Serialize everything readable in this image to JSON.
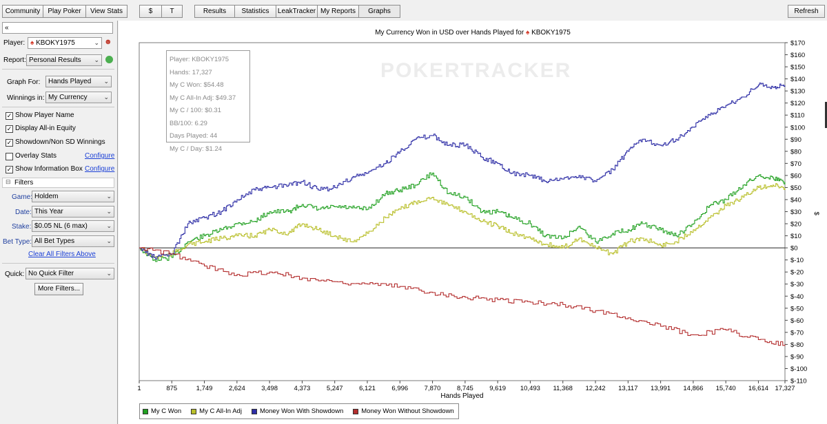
{
  "toolbar": {
    "group1": [
      "Community",
      "Play Poker",
      "View Stats"
    ],
    "group2": [
      "$",
      "T"
    ],
    "group3": [
      "Results",
      "Statistics",
      "LeakTracker",
      "My Reports",
      "Graphs"
    ],
    "refresh": "Refresh"
  },
  "left": {
    "search_glyph": "«",
    "player_label": "Player:",
    "player_value": "KBOKY1975",
    "report_label": "Report:",
    "report_value": "Personal Results",
    "graph_for_label": "Graph For:",
    "graph_for_value": "Hands Played",
    "winnings_label": "Winnings in:",
    "winnings_value": "My Currency",
    "checks": [
      {
        "label": "Show Player Name",
        "checked": true
      },
      {
        "label": "Display All-in Equity",
        "checked": true
      },
      {
        "label": "Showdown/Non SD Winnings",
        "checked": true
      },
      {
        "label": "Overlay Stats",
        "checked": false
      },
      {
        "label": "Show Information Box",
        "checked": true
      }
    ],
    "configure": "Configure",
    "filters_header": "Filters",
    "game_label": "Game:",
    "game_value": "Holdem",
    "date_label": "Date:",
    "date_value": "This Year",
    "stake_label": "Stake:",
    "stake_value": "$0.05 NL (6 max)",
    "bettype_label": "Bet Type:",
    "bettype_value": "All Bet Types",
    "clear_filters": "Clear All Filters Above",
    "quick_label": "Quick:",
    "quick_value": "No Quick Filter",
    "more_filters": "More Filters..."
  },
  "infobox": [
    "Player: KBOKY1975",
    "Hands: 17,327",
    "My C Won: $54.48",
    "My C All-In Adj: $49.37",
    "My C / 100: $0.31",
    "BB/100: 6.29",
    "Days Played: 44",
    "My C / Day: $1.24"
  ],
  "watermark": "POKERTRACKER",
  "chart_data": {
    "type": "line",
    "title": "My Currency Won in USD over Hands Played for",
    "title_player": "KBOKY1975",
    "xlabel": "Hands Played",
    "ylabel": "$",
    "xlim": [
      1,
      17327
    ],
    "ylim": [
      -110,
      170
    ],
    "x_ticks": [
      1,
      875,
      1749,
      2624,
      3498,
      4373,
      5247,
      6121,
      6996,
      7870,
      8745,
      9619,
      10493,
      11368,
      12242,
      13117,
      13991,
      14866,
      15740,
      16614,
      17327
    ],
    "x_tick_labels": [
      "1",
      "875",
      "1,749",
      "2,624",
      "3,498",
      "4,373",
      "5,247",
      "6,121",
      "6,996",
      "7,870",
      "8,745",
      "9,619",
      "10,493",
      "11,368",
      "12,242",
      "13,117",
      "13,991",
      "14,866",
      "15,740",
      "16,614",
      "17,327"
    ],
    "y_ticks": [
      170,
      160,
      150,
      140,
      130,
      120,
      110,
      100,
      90,
      80,
      70,
      60,
      50,
      40,
      30,
      20,
      10,
      0,
      -10,
      -20,
      -30,
      -40,
      -50,
      -60,
      -70,
      -80,
      -90,
      -100,
      -110
    ],
    "y_tick_labels": [
      "$170",
      "$160",
      "$150",
      "$140",
      "$130",
      "$120",
      "$110",
      "$100",
      "$90",
      "$80",
      "$70",
      "$60",
      "$50",
      "$40",
      "$30",
      "$20",
      "$10",
      "$0",
      "$-10",
      "$-20",
      "$-30",
      "$-40",
      "$-50",
      "$-60",
      "$-70",
      "$-80",
      "$-90",
      "$-100",
      "$-110"
    ],
    "legend_position": "bottom-left",
    "grid": false,
    "series": [
      {
        "name": "My C Won",
        "color": "#22a122",
        "x": [
          1,
          400,
          875,
          1300,
          1749,
          2200,
          2624,
          3100,
          3498,
          4000,
          4373,
          4800,
          5247,
          5700,
          6121,
          6600,
          6996,
          7400,
          7870,
          8300,
          8745,
          9200,
          9619,
          10000,
          10493,
          10900,
          11368,
          11800,
          12242,
          12700,
          13117,
          13500,
          13991,
          14400,
          14866,
          15300,
          15740,
          16200,
          16614,
          17000,
          17327
        ],
        "y": [
          0,
          -10,
          -8,
          5,
          10,
          15,
          20,
          22,
          30,
          30,
          36,
          32,
          34,
          33,
          32,
          45,
          48,
          52,
          62,
          45,
          42,
          30,
          30,
          25,
          20,
          10,
          8,
          18,
          5,
          12,
          15,
          20,
          15,
          10,
          20,
          35,
          40,
          52,
          60,
          58,
          54.48
        ]
      },
      {
        "name": "My C All-In Adj",
        "color": "#b9bf2a",
        "x": [
          1,
          400,
          875,
          1300,
          1749,
          2200,
          2624,
          3100,
          3498,
          4000,
          4373,
          4800,
          5247,
          5700,
          6121,
          6600,
          6996,
          7400,
          7870,
          8300,
          8745,
          9200,
          9619,
          10000,
          10493,
          10900,
          11368,
          11800,
          12242,
          12700,
          13117,
          13500,
          13991,
          14400,
          14866,
          15300,
          15740,
          16200,
          16614,
          17000,
          17327
        ],
        "y": [
          0,
          -8,
          -5,
          3,
          5,
          8,
          10,
          10,
          15,
          12,
          20,
          15,
          10,
          5,
          12,
          25,
          32,
          38,
          42,
          35,
          30,
          22,
          18,
          12,
          8,
          3,
          0,
          8,
          0,
          -5,
          5,
          8,
          2,
          5,
          15,
          25,
          35,
          42,
          50,
          52,
          49.37
        ]
      },
      {
        "name": "Money Won With Showdown",
        "color": "#2e2ea6",
        "x": [
          1,
          400,
          875,
          1300,
          1749,
          2200,
          2624,
          3100,
          3498,
          4000,
          4373,
          4800,
          5247,
          5700,
          6121,
          6600,
          6996,
          7400,
          7870,
          8300,
          8745,
          9200,
          9619,
          10000,
          10493,
          10900,
          11368,
          11800,
          12242,
          12700,
          13117,
          13500,
          13991,
          14400,
          14866,
          15300,
          15740,
          16200,
          16614,
          17000,
          17327
        ],
        "y": [
          0,
          -8,
          -5,
          20,
          25,
          30,
          40,
          48,
          50,
          52,
          55,
          48,
          50,
          58,
          62,
          70,
          80,
          90,
          93,
          85,
          85,
          75,
          70,
          62,
          60,
          55,
          57,
          60,
          55,
          65,
          80,
          90,
          85,
          90,
          100,
          110,
          118,
          125,
          135,
          133,
          134.5
        ]
      },
      {
        "name": "Money Won Without Showdown",
        "color": "#b32d2d",
        "x": [
          1,
          875,
          1749,
          2624,
          3498,
          4373,
          5247,
          6121,
          6996,
          7870,
          8745,
          9619,
          10493,
          11368,
          12242,
          13117,
          13991,
          14866,
          15740,
          16614,
          17327
        ],
        "y": [
          0,
          -5,
          -15,
          -22,
          -20,
          -25,
          -28,
          -30,
          -32,
          -37,
          -41,
          -43,
          -45,
          -47,
          -52,
          -58,
          -65,
          -72,
          -68,
          -76,
          -80
        ]
      }
    ]
  }
}
